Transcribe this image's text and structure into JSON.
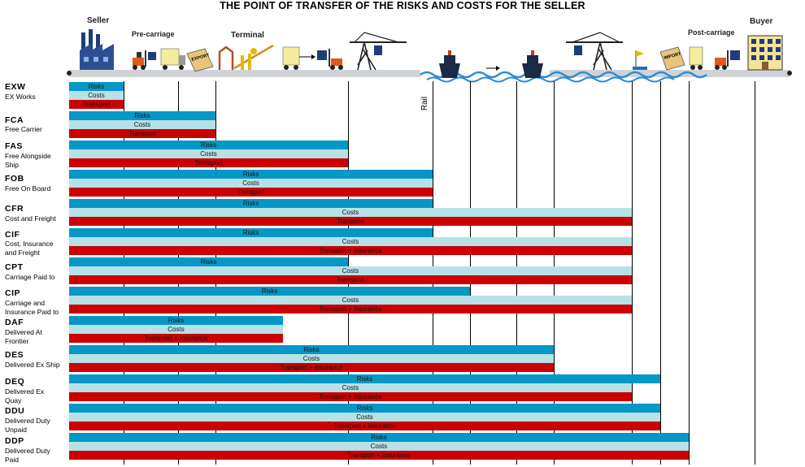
{
  "title": "THE POINT OF TRANSFER OF THE RISKS AND COSTS FOR THE SELLER",
  "header": {
    "seller": "Seller",
    "pre_carriage": "Pre-carriage",
    "terminal": "Terminal",
    "post_carriage": "Post-carriage",
    "buyer": "Buyer",
    "export_sign": "EXPORT",
    "import_sign": "IMPORT"
  },
  "rail_label": "Rail",
  "bar_labels": {
    "risks": "Risks",
    "costs": "Costs",
    "transport": "Transport",
    "transport_insurance": "Transport + insurance"
  },
  "colors": {
    "risks": "#0597c6",
    "costs": "#b6e1e7",
    "transport": "#cc0000"
  },
  "incoterms": [
    {
      "code": "EXW",
      "desc": [
        "EX Works"
      ],
      "transport_label": "Transport"
    },
    {
      "code": "FCA",
      "desc": [
        "Free Carrier"
      ],
      "transport_label": "Transport"
    },
    {
      "code": "FAS",
      "desc": [
        "Free Alongside",
        "Ship"
      ],
      "transport_label": "Transport"
    },
    {
      "code": "FOB",
      "desc": [
        "Free On Board"
      ],
      "transport_label": "Transport"
    },
    {
      "code": "CFR",
      "desc": [
        "Cost and Freight"
      ],
      "transport_label": "Transport"
    },
    {
      "code": "CIF",
      "desc": [
        "Cost, Insurance",
        "and Freight"
      ],
      "transport_label": "Transport + insurance"
    },
    {
      "code": "CPT",
      "desc": [
        "Carriage Paid to"
      ],
      "transport_label": "Transport"
    },
    {
      "code": "CIP",
      "desc": [
        "Carriage and",
        "Insurance Paid to"
      ],
      "transport_label": "Transport + insurance"
    },
    {
      "code": "DAF",
      "desc": [
        "Delivered At",
        "Frontier"
      ],
      "transport_label": "Transport + insurance"
    },
    {
      "code": "DES",
      "desc": [
        "Delivered Ex Ship"
      ],
      "transport_label": "Transport + insurance"
    },
    {
      "code": "DEQ",
      "desc": [
        "Delivered Ex",
        "Quay"
      ],
      "transport_label": "Transport + insurance"
    },
    {
      "code": "DDU",
      "desc": [
        "Delivered Duty",
        "Unpaid"
      ],
      "transport_label": "Transport + insurance"
    },
    {
      "code": "DDP",
      "desc": [
        "Delivered Duty",
        "Paid"
      ],
      "transport_label": "Transport + insurance"
    }
  ]
}
